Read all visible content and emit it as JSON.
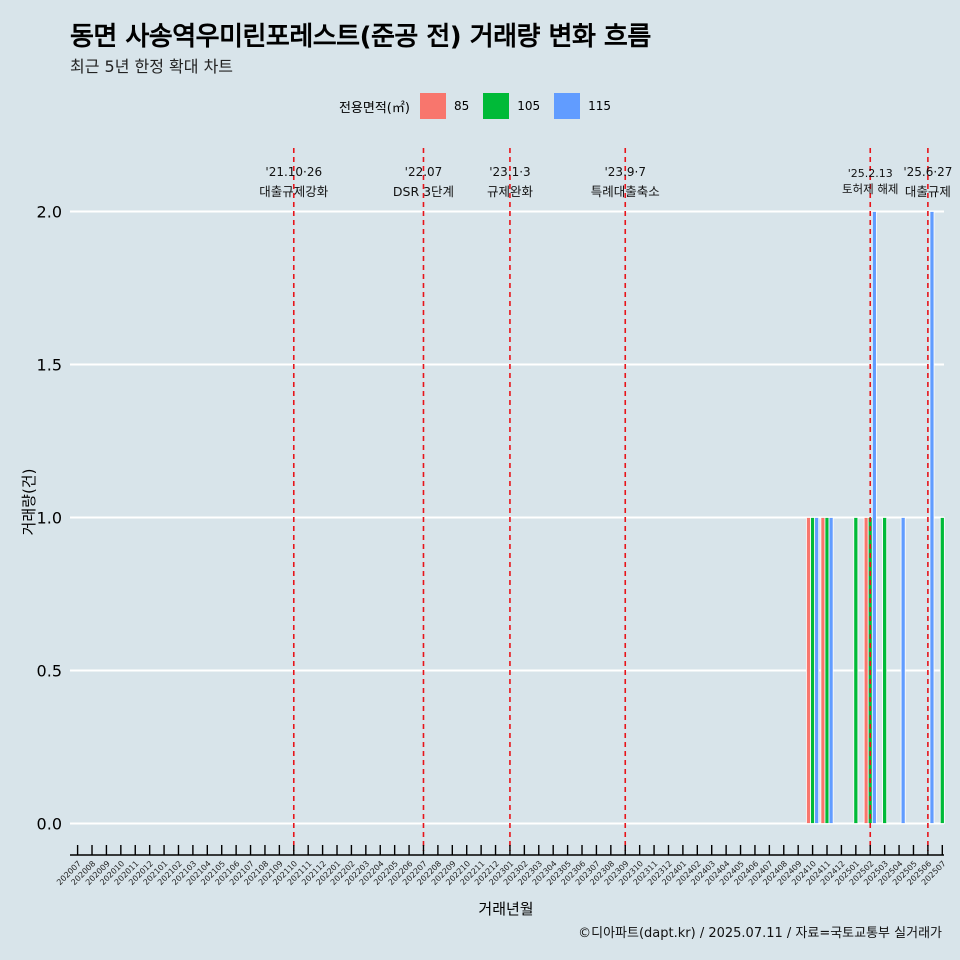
{
  "chart_data": {
    "type": "bar",
    "title": "동면 사송역우미린포레스트(준공 전) 거래량 변화 흐름",
    "subtitle": "최근 5년 한정 확대 차트",
    "xlabel": "거래년월",
    "ylabel": "거래량(건)",
    "caption": "©디아파트(dapt.kr) / 2025.07.11 / 자료=국토교통부 실거래가",
    "legend_title": "전용면적(㎡)",
    "ylim": [
      -0.09,
      2.2
    ],
    "yticks": [
      "0.0",
      "0.5",
      "1.0",
      "1.5",
      "2.0"
    ],
    "categories": [
      "202007",
      "202008",
      "202009",
      "202010",
      "202011",
      "202012",
      "202101",
      "202102",
      "202103",
      "202104",
      "202105",
      "202106",
      "202107",
      "202108",
      "202109",
      "202110",
      "202111",
      "202112",
      "202201",
      "202202",
      "202203",
      "202204",
      "202205",
      "202206",
      "202207",
      "202208",
      "202209",
      "202210",
      "202211",
      "202212",
      "202301",
      "202302",
      "202303",
      "202304",
      "202305",
      "202306",
      "202307",
      "202308",
      "202309",
      "202310",
      "202311",
      "202312",
      "202401",
      "202402",
      "202403",
      "202404",
      "202405",
      "202406",
      "202407",
      "202408",
      "202409",
      "202410",
      "202411",
      "202412",
      "202501",
      "202502",
      "202503",
      "202504",
      "202505",
      "202506",
      "202507"
    ],
    "series": [
      {
        "name": "85",
        "color": "#f8766d",
        "values": [
          0,
          0,
          0,
          0,
          0,
          0,
          0,
          0,
          0,
          0,
          0,
          0,
          0,
          0,
          0,
          0,
          0,
          0,
          0,
          0,
          0,
          0,
          0,
          0,
          0,
          0,
          0,
          0,
          0,
          0,
          0,
          0,
          0,
          0,
          0,
          0,
          0,
          0,
          0,
          0,
          0,
          0,
          0,
          0,
          0,
          0,
          0,
          0,
          0,
          0,
          0,
          1,
          1,
          0,
          0,
          1,
          0,
          0,
          0,
          0,
          0
        ]
      },
      {
        "name": "105",
        "color": "#00ba38",
        "values": [
          0,
          0,
          0,
          0,
          0,
          0,
          0,
          0,
          0,
          0,
          0,
          0,
          0,
          0,
          0,
          0,
          0,
          0,
          0,
          0,
          0,
          0,
          0,
          0,
          0,
          0,
          0,
          0,
          0,
          0,
          0,
          0,
          0,
          0,
          0,
          0,
          0,
          0,
          0,
          0,
          0,
          0,
          0,
          0,
          0,
          0,
          0,
          0,
          0,
          0,
          0,
          1,
          1,
          0,
          1,
          1,
          1,
          0,
          0,
          0,
          1
        ]
      },
      {
        "name": "115",
        "color": "#619cff",
        "values": [
          0,
          0,
          0,
          0,
          0,
          0,
          0,
          0,
          0,
          0,
          0,
          0,
          0,
          0,
          0,
          0,
          0,
          0,
          0,
          0,
          0,
          0,
          0,
          0,
          0,
          0,
          0,
          0,
          0,
          0,
          0,
          0,
          0,
          0,
          0,
          0,
          0,
          0,
          0,
          0,
          0,
          0,
          0,
          0,
          0,
          0,
          0,
          0,
          0,
          0,
          0,
          1,
          1,
          0,
          0,
          2,
          0,
          1,
          0,
          2,
          0
        ]
      }
    ],
    "annotations": [
      {
        "month": "202110",
        "date": "'21.10·26",
        "label": "대출규제강화"
      },
      {
        "month": "202207",
        "date": "'22.07",
        "label": "DSR 3단계"
      },
      {
        "month": "202301",
        "date": "'23.1·3",
        "label": "규제완화"
      },
      {
        "month": "202309",
        "date": "'23.9·7",
        "label": "특례대출축소"
      },
      {
        "month": "202502",
        "date": "'25.2.13",
        "label": "토허제 해제"
      },
      {
        "month": "202506",
        "date": "'25.6·27",
        "label": "대출규제"
      }
    ]
  }
}
